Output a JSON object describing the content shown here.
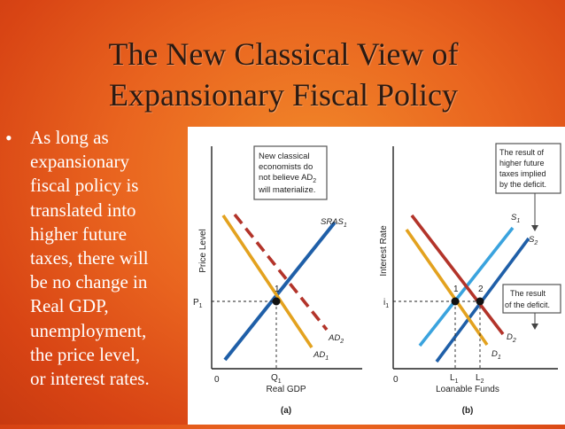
{
  "slide": {
    "title_line1": "The New Classical View of",
    "title_line2": "Expansionary Fiscal Policy",
    "bullet_lines": [
      "As long as",
      "expansionary",
      "fiscal policy is",
      "translated into",
      "higher future",
      "taxes, there will",
      "be no change in",
      "Real GDP,",
      "unemployment,",
      "the price level,",
      "or interest rates."
    ],
    "bullet_symbol": "•"
  },
  "figure": {
    "panel_a": {
      "ylabel": "Price Level",
      "xlabel": "Real GDP",
      "caption": "(a)",
      "origin": "0",
      "sras_label": "SRAS",
      "sras_sub": "1",
      "ad1_label": "AD",
      "ad1_sub": "1",
      "ad2_label": "AD",
      "ad2_sub": "2",
      "point_label": "1",
      "p_label": "P",
      "p_sub": "1",
      "q_label": "Q",
      "q_sub": "1",
      "note_lines": [
        "New classical",
        "economists do",
        "not believe AD",
        "will materialize."
      ],
      "note_sub": "2"
    },
    "panel_b": {
      "ylabel": "Interest Rate",
      "xlabel": "Loanable Funds",
      "caption": "(b)",
      "origin": "0",
      "s1_label": "S",
      "s1_sub": "1",
      "s2_label": "S",
      "s2_sub": "2",
      "d1_label": "D",
      "d1_sub": "1",
      "d2_label": "D",
      "d2_sub": "2",
      "point1_label": "1",
      "point2_label": "2",
      "i_label": "i",
      "i_sub": "1",
      "l1_label": "L",
      "l1_sub": "1",
      "l2_label": "L",
      "l2_sub": "2",
      "note_top_lines": [
        "The result of",
        "higher future",
        "taxes implied",
        "by the deficit."
      ],
      "note_right_lines": [
        "The result",
        "of the deficit."
      ]
    },
    "colors": {
      "supply": "#1f5fa8",
      "supply_light": "#3aa3de",
      "demand": "#e3a21f",
      "demand_shift": "#b3342a",
      "accent_box_border": "#555555",
      "ink": "#222222"
    }
  }
}
